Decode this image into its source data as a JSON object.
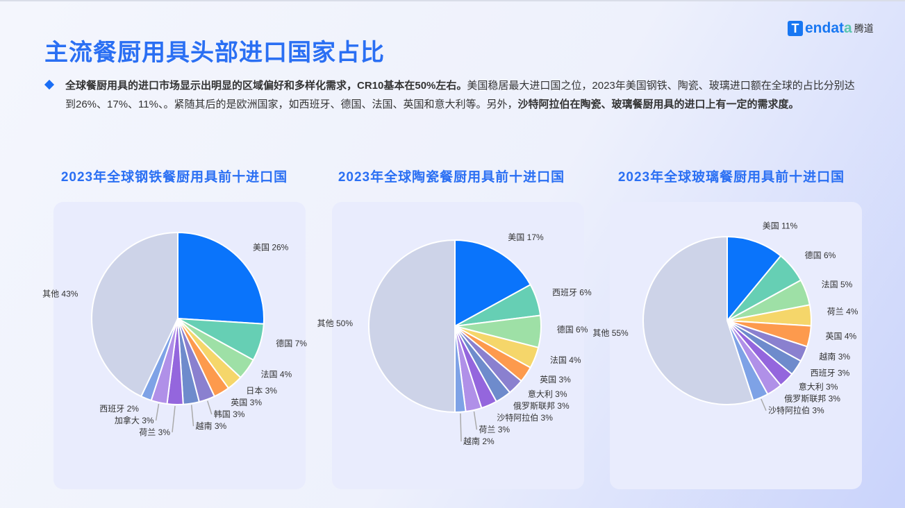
{
  "title": "主流餐厨用具头部进口国家占比",
  "logo": {
    "text": "Tendata",
    "cn": "腾道"
  },
  "description": {
    "bold1": "全球餐厨用具的进口市场显示出明显的区域偏好和多样化需求，CR10基本在50%左右。",
    "normal1": "美国稳居最大进口国之位，2023年美国钢铁、陶瓷、玻璃进口额在全球的占比分别达到26%、17%、11%、。紧随其后的是欧洲国家，如西班牙、德国、法国、英国和意大利等。另外，",
    "bold2": "沙特阿拉伯在陶瓷、玻璃餐厨用具的进口上有一定的需求度。"
  },
  "chart_data": [
    {
      "type": "pie",
      "title": "2023年全球钢铁餐厨用具前十进口国",
      "categories": [
        "美国",
        "德国",
        "法国",
        "日本",
        "英国",
        "韩国",
        "越南",
        "荷兰",
        "加拿大",
        "西班牙",
        "其他"
      ],
      "values": [
        26,
        7,
        4,
        3,
        3,
        3,
        3,
        3,
        3,
        2,
        43
      ],
      "colors": [
        "#0a74fb",
        "#66cfb4",
        "#9ee0a6",
        "#f5d66a",
        "#fd9a4d",
        "#8a80cf",
        "#6e8bcc",
        "#9466dd",
        "#b090e8",
        "#7ea2e6",
        "#cdd3e8"
      ]
    },
    {
      "type": "pie",
      "title": "2023年全球陶瓷餐厨用具前十进口国",
      "categories": [
        "美国",
        "西班牙",
        "德国",
        "法国",
        "英国",
        "意大利",
        "俄罗斯联邦",
        "沙特阿拉伯",
        "荷兰",
        "越南",
        "其他"
      ],
      "values": [
        17,
        6,
        6,
        4,
        3,
        3,
        3,
        3,
        3,
        2,
        50
      ],
      "colors": [
        "#0a74fb",
        "#66cfb4",
        "#9ee0a6",
        "#f5d66a",
        "#fd9a4d",
        "#8a80cf",
        "#6e8bcc",
        "#9466dd",
        "#b090e8",
        "#7ea2e6",
        "#cdd3e8"
      ]
    },
    {
      "type": "pie",
      "title": "2023年全球玻璃餐厨用具前十进口国",
      "categories": [
        "美国",
        "德国",
        "法国",
        "荷兰",
        "英国",
        "越南",
        "西班牙",
        "意大利",
        "俄罗斯联邦",
        "沙特阿拉伯",
        "其他"
      ],
      "values": [
        11,
        6,
        5,
        4,
        4,
        3,
        3,
        3,
        3,
        3,
        55
      ],
      "colors": [
        "#0a74fb",
        "#66cfb4",
        "#9ee0a6",
        "#f5d66a",
        "#fd9a4d",
        "#8a80cf",
        "#6e8bcc",
        "#9466dd",
        "#b090e8",
        "#7ea2e6",
        "#cdd3e8"
      ]
    }
  ]
}
